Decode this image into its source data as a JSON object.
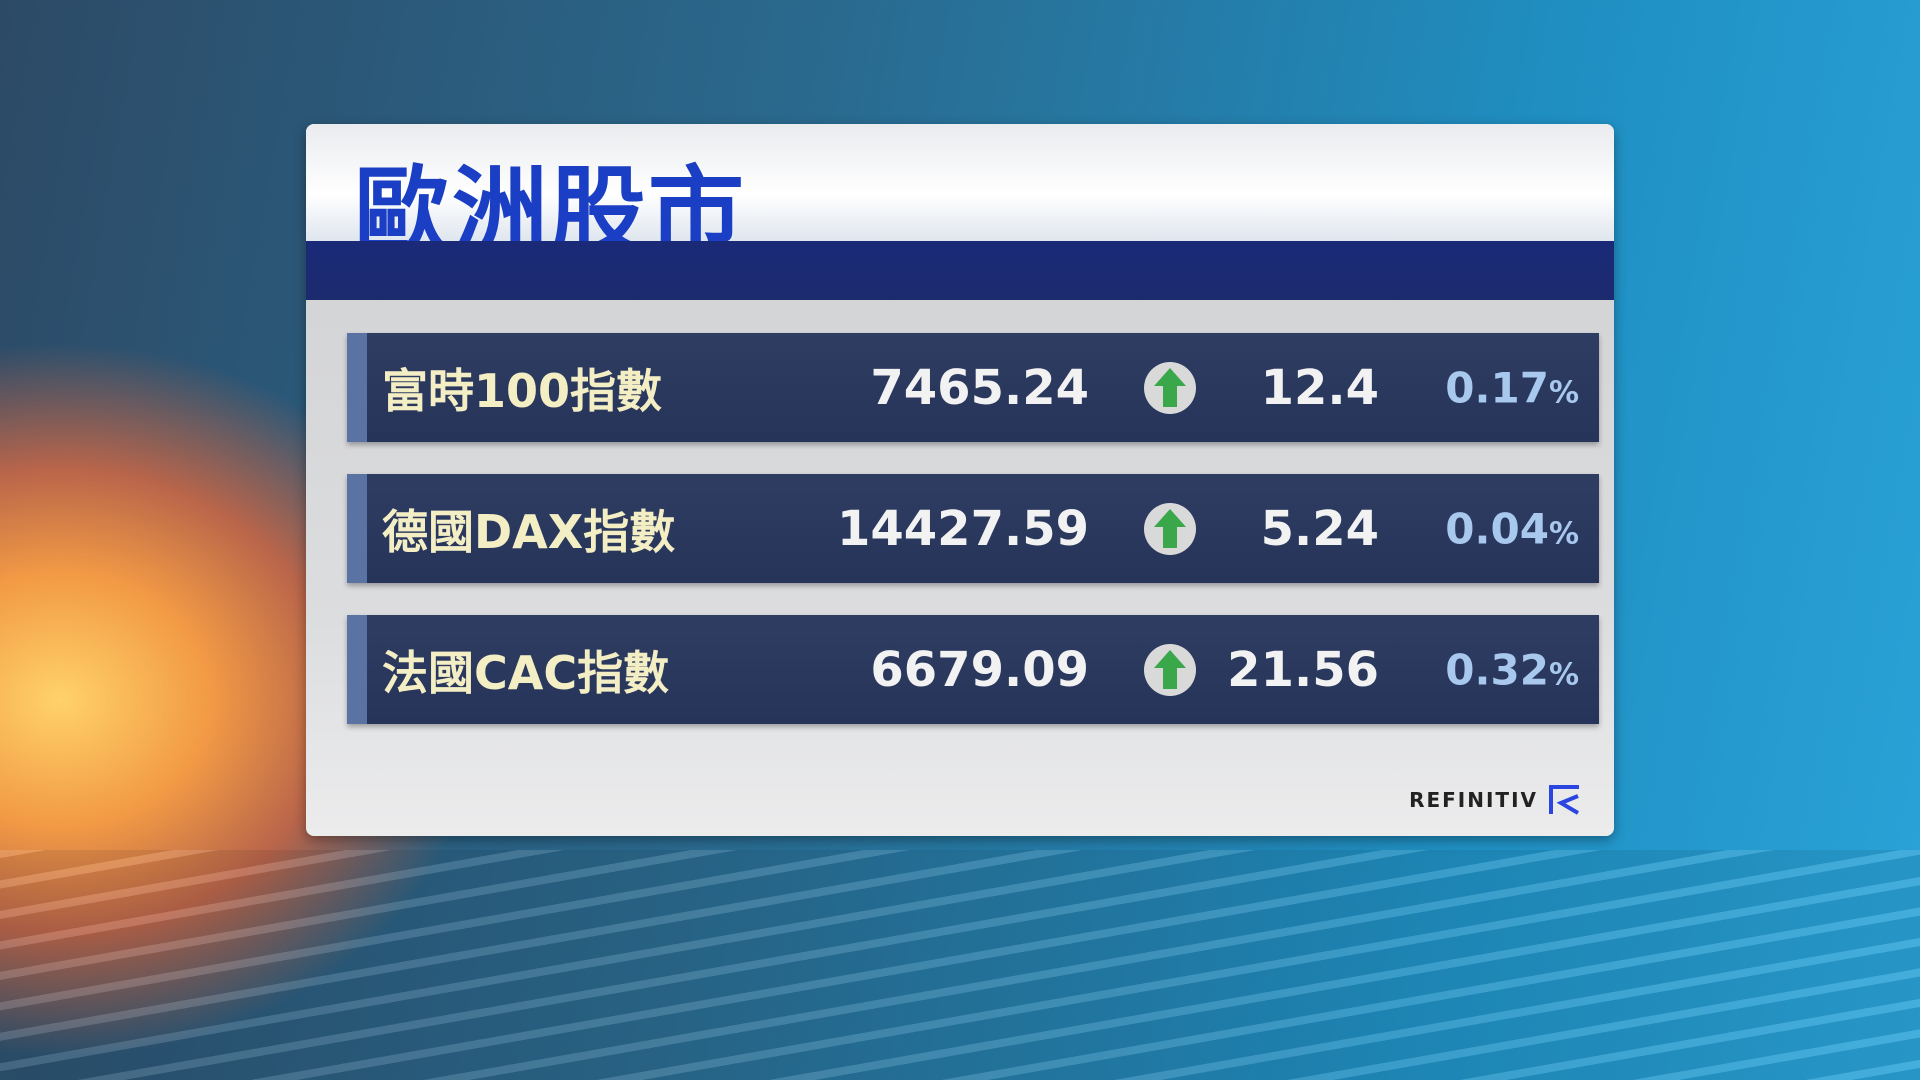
{
  "title": "歐洲股市",
  "rows": [
    {
      "label": "富時100指數",
      "value": "7465.24",
      "direction": "up",
      "change": "12.4",
      "percent": "0.17",
      "percent_sign": "%"
    },
    {
      "label": "德國DAX指數",
      "value": "14427.59",
      "direction": "up",
      "change": "5.24",
      "percent": "0.04",
      "percent_sign": "%"
    },
    {
      "label": "法國CAC指數",
      "value": "6679.09",
      "direction": "up",
      "change": "21.56",
      "percent": "0.32",
      "percent_sign": "%"
    }
  ],
  "source": "REFINITIV",
  "colors": {
    "title": "#1b3fc4",
    "up_arrow": "#3aa84a",
    "row_bg": "#2a385e"
  }
}
